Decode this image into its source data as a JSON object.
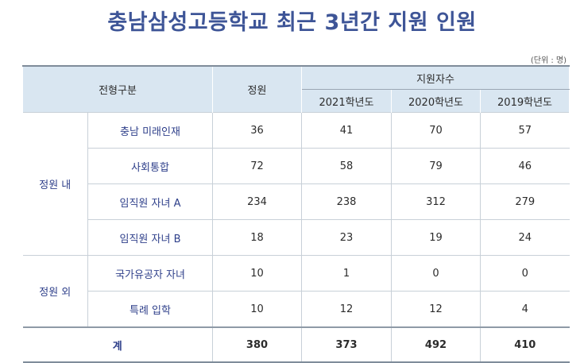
{
  "title": "충남삼성고등학교 최근 3년간 지원 인원",
  "unit": "(단위 : 명)",
  "header": {
    "category": "전형구분",
    "quota": "정원",
    "applicants": "지원자수",
    "years": [
      "2021학년도",
      "2020학년도",
      "2019학년도"
    ]
  },
  "sections": [
    {
      "label": "정원 내",
      "rows": [
        {
          "name": "충남 미래인재",
          "quota": "36",
          "y2021": "41",
          "y2020": "70",
          "y2019": "57"
        },
        {
          "name": "사회통합",
          "quota": "72",
          "y2021": "58",
          "y2020": "79",
          "y2019": "46"
        },
        {
          "name": "임직원 자녀 A",
          "quota": "234",
          "y2021": "238",
          "y2020": "312",
          "y2019": "279"
        },
        {
          "name": "임직원 자녀 B",
          "quota": "18",
          "y2021": "23",
          "y2020": "19",
          "y2019": "24"
        }
      ]
    },
    {
      "label": "정원 외",
      "rows": [
        {
          "name": "국가유공자 자녀",
          "quota": "10",
          "y2021": "1",
          "y2020": "0",
          "y2019": "0"
        },
        {
          "name": "특례 입학",
          "quota": "10",
          "y2021": "12",
          "y2020": "12",
          "y2019": "4"
        }
      ]
    }
  ],
  "total": {
    "label": "계",
    "quota": "380",
    "y2021": "373",
    "y2020": "492",
    "y2019": "410"
  }
}
